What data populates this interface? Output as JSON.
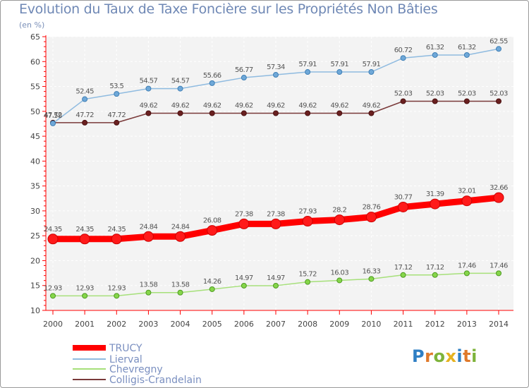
{
  "title": "Evolution du Taux de Taxe Foncière sur les Propriétés Non Bâties",
  "unit_label": "(en %)",
  "logo": {
    "text": "Proxiti",
    "colors": [
      "#2f7fc4",
      "#e0792a",
      "#7db33a",
      "#e6b21f",
      "#2f7fc4",
      "#e0792a",
      "#7db33a"
    ]
  },
  "chart_data": {
    "type": "line",
    "title": "Evolution du Taux de Taxe Foncière sur les Propriétés Non Bâties",
    "ylabel": "(en %)",
    "xlabel": "",
    "x": [
      2000,
      2001,
      2002,
      2003,
      2004,
      2005,
      2006,
      2007,
      2008,
      2009,
      2010,
      2011,
      2012,
      2013,
      2014
    ],
    "ylim": [
      10,
      65
    ],
    "yticks": [
      10,
      15,
      20,
      25,
      30,
      35,
      40,
      45,
      50,
      55,
      60,
      65
    ],
    "grid": true,
    "legend_position": "bottom-left",
    "series": [
      {
        "name": "TRUCY",
        "color": "#ff0000",
        "values": [
          24.35,
          24.35,
          24.35,
          24.84,
          24.84,
          26.08,
          27.38,
          27.38,
          27.93,
          28.2,
          28.76,
          30.77,
          31.39,
          32.01,
          32.66
        ],
        "labels": [
          "24.35",
          "24.35",
          "24.35",
          "24.84",
          "24.84",
          "26.08",
          "27.38",
          "27.38",
          "27.93",
          "28.2",
          "28.76",
          "30.77",
          "31.39",
          "32.01",
          "32.66"
        ]
      },
      {
        "name": "Lierval",
        "color": "#7fb0d8",
        "values": [
          47.58,
          52.45,
          53.5,
          54.57,
          54.57,
          55.66,
          56.77,
          57.34,
          57.91,
          57.91,
          57.91,
          60.72,
          61.32,
          61.32,
          62.55
        ],
        "labels": [
          "47.58",
          "52.45",
          "53.5",
          "54.57",
          "54.57",
          "55.66",
          "56.77",
          "57.34",
          "57.91",
          "57.91",
          "57.91",
          "60.72",
          "61.32",
          "61.32",
          "62.55"
        ]
      },
      {
        "name": "Chevregny",
        "color": "#a6e07a",
        "values": [
          12.93,
          12.93,
          12.93,
          13.58,
          13.58,
          14.26,
          14.97,
          14.97,
          15.72,
          16.03,
          16.33,
          17.12,
          17.12,
          17.46,
          17.46
        ],
        "labels": [
          "12.93",
          "12.93",
          "12.93",
          "13.58",
          "13.58",
          "14.26",
          "14.97",
          "14.97",
          "15.72",
          "16.03",
          "16.33",
          "17.12",
          "17.12",
          "17.46",
          "17.46"
        ]
      },
      {
        "name": "Colligis-Crandelain",
        "color": "#7a3a3a",
        "values": [
          47.72,
          47.72,
          47.72,
          49.62,
          49.62,
          49.62,
          49.62,
          49.62,
          49.62,
          49.62,
          49.62,
          52.03,
          52.03,
          52.03,
          52.03
        ],
        "labels": [
          "47.72",
          "47.72",
          "47.72",
          "49.62",
          "49.62",
          "49.62",
          "49.62",
          "49.62",
          "49.62",
          "49.62",
          "49.62",
          "52.03",
          "52.03",
          "52.03",
          "52.03"
        ]
      }
    ]
  }
}
